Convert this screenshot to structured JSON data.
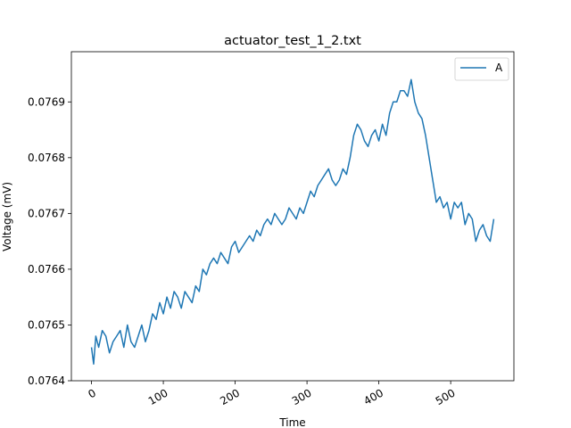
{
  "chart_data": {
    "type": "line",
    "title": "actuator_test_1_2.txt",
    "xlabel": "Time",
    "ylabel": "Voltage (mV)",
    "xlim": [
      -28,
      588
    ],
    "ylim": [
      0.0764,
      0.07699
    ],
    "xticks": [
      0,
      100,
      200,
      300,
      400,
      500
    ],
    "yticks": [
      0.0764,
      0.0765,
      0.0766,
      0.0767,
      0.0768,
      0.0769
    ],
    "ytick_labels": [
      "0.0764",
      "0.0765",
      "0.0766",
      "0.0767",
      "0.0768",
      "0.0769"
    ],
    "legend": {
      "position": "top-right"
    },
    "grid": false,
    "series": [
      {
        "name": "A",
        "color": "#1f77b4",
        "x": [
          0,
          3,
          6,
          10,
          15,
          20,
          25,
          30,
          35,
          40,
          45,
          50,
          55,
          60,
          65,
          70,
          75,
          80,
          85,
          90,
          95,
          100,
          105,
          110,
          115,
          120,
          125,
          130,
          135,
          140,
          145,
          150,
          155,
          160,
          165,
          170,
          175,
          180,
          185,
          190,
          195,
          200,
          205,
          210,
          215,
          220,
          225,
          230,
          235,
          240,
          245,
          250,
          255,
          260,
          265,
          270,
          275,
          280,
          285,
          290,
          295,
          300,
          305,
          310,
          315,
          320,
          325,
          330,
          335,
          340,
          345,
          350,
          355,
          360,
          365,
          370,
          375,
          380,
          385,
          390,
          395,
          400,
          405,
          410,
          415,
          420,
          425,
          430,
          435,
          440,
          445,
          450,
          455,
          460,
          465,
          470,
          475,
          480,
          485,
          490,
          495,
          500,
          505,
          510,
          515,
          520,
          525,
          530,
          535,
          540,
          545,
          550,
          555,
          560
        ],
        "y": [
          0.07646,
          0.07643,
          0.07648,
          0.07646,
          0.07649,
          0.07648,
          0.07645,
          0.07647,
          0.07648,
          0.07649,
          0.07646,
          0.0765,
          0.07647,
          0.07646,
          0.07648,
          0.0765,
          0.07647,
          0.07649,
          0.07652,
          0.07651,
          0.07654,
          0.07652,
          0.07655,
          0.07653,
          0.07656,
          0.07655,
          0.07653,
          0.07656,
          0.07655,
          0.07654,
          0.07657,
          0.07656,
          0.0766,
          0.07659,
          0.07661,
          0.07662,
          0.07661,
          0.07663,
          0.07662,
          0.07661,
          0.07664,
          0.07665,
          0.07663,
          0.07664,
          0.07665,
          0.07666,
          0.07665,
          0.07667,
          0.07666,
          0.07668,
          0.07669,
          0.07668,
          0.0767,
          0.07669,
          0.07668,
          0.07669,
          0.07671,
          0.0767,
          0.07669,
          0.07671,
          0.0767,
          0.07672,
          0.07674,
          0.07673,
          0.07675,
          0.07676,
          0.07677,
          0.07678,
          0.07676,
          0.07675,
          0.07676,
          0.07678,
          0.07677,
          0.0768,
          0.07684,
          0.07686,
          0.07685,
          0.07683,
          0.07682,
          0.07684,
          0.07685,
          0.07683,
          0.07686,
          0.07684,
          0.07688,
          0.0769,
          0.0769,
          0.07692,
          0.07692,
          0.07691,
          0.07694,
          0.0769,
          0.07688,
          0.07687,
          0.07684,
          0.0768,
          0.07676,
          0.07672,
          0.07673,
          0.07671,
          0.07672,
          0.07669,
          0.07672,
          0.07671,
          0.07672,
          0.07668,
          0.0767,
          0.07669,
          0.07665,
          0.07667,
          0.07668,
          0.07666,
          0.07665,
          0.07669
        ]
      }
    ]
  }
}
